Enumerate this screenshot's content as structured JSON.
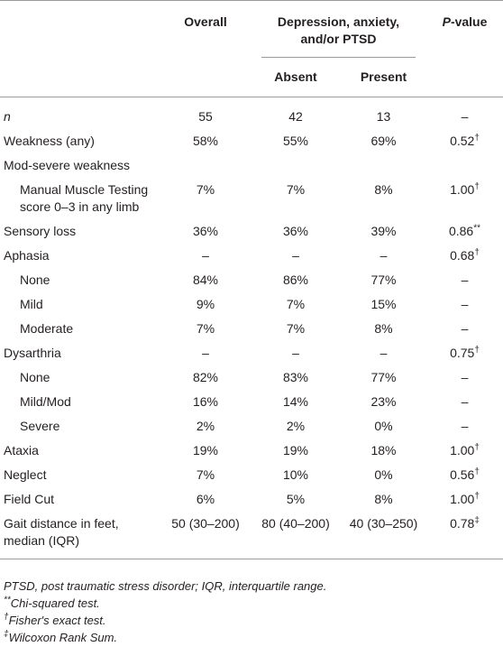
{
  "table": {
    "header": {
      "overall": "Overall",
      "group": "Depression, anxiety, and/or PTSD",
      "absent": "Absent",
      "present": "Present",
      "p_italic": "P",
      "p_rest": "-value"
    },
    "rows": [
      {
        "label": "n",
        "overall": "55",
        "absent": "42",
        "present": "13",
        "p_value": "–"
      },
      {
        "label": "Weakness (any)",
        "overall": "58%",
        "absent": "55%",
        "present": "69%",
        "p_value": "0.52",
        "p_note": "†"
      },
      {
        "label": "Mod-severe weakness",
        "overall": "",
        "absent": "",
        "present": "",
        "p_value": ""
      },
      {
        "label": "Manual Muscle Testing score 0–3 in any limb",
        "overall": "7%",
        "absent": "7%",
        "present": "8%",
        "p_value": "1.00",
        "p_note": "†"
      },
      {
        "label": "Sensory loss",
        "overall": "36%",
        "absent": "36%",
        "present": "39%",
        "p_value": "0.86",
        "p_note": "**"
      },
      {
        "label": "Aphasia",
        "overall": "–",
        "absent": "–",
        "present": "–",
        "p_value": "0.68",
        "p_note": "†"
      },
      {
        "label": "None",
        "overall": "84%",
        "absent": "86%",
        "present": "77%",
        "p_value": "–"
      },
      {
        "label": "Mild",
        "overall": "9%",
        "absent": "7%",
        "present": "15%",
        "p_value": "–"
      },
      {
        "label": "Moderate",
        "overall": "7%",
        "absent": "7%",
        "present": "8%",
        "p_value": "–"
      },
      {
        "label": "Dysarthria",
        "overall": "–",
        "absent": "–",
        "present": "–",
        "p_value": "0.75",
        "p_note": "†"
      },
      {
        "label": "None",
        "overall": "82%",
        "absent": "83%",
        "present": "77%",
        "p_value": "–"
      },
      {
        "label": "Mild/Mod",
        "overall": "16%",
        "absent": "14%",
        "present": "23%",
        "p_value": "–"
      },
      {
        "label": "Severe",
        "overall": "2%",
        "absent": "2%",
        "present": "0%",
        "p_value": "–"
      },
      {
        "label": "Ataxia",
        "overall": "19%",
        "absent": "19%",
        "present": "18%",
        "p_value": "1.00",
        "p_note": "†"
      },
      {
        "label": "Neglect",
        "overall": "7%",
        "absent": "10%",
        "present": "0%",
        "p_value": "0.56",
        "p_note": "†"
      },
      {
        "label": "Field Cut",
        "overall": "6%",
        "absent": "5%",
        "present": "8%",
        "p_value": "1.00",
        "p_note": "†"
      },
      {
        "label": "Gait distance in feet, median (IQR)",
        "overall": "50 (30–200)",
        "absent": "80 (40–200)",
        "present": "40 (30–250)",
        "p_value": "0.78",
        "p_note": "‡"
      }
    ],
    "footnotes": [
      {
        "text": "PTSD, post traumatic stress disorder; IQR, interquartile range."
      },
      {
        "symbol": "**",
        "text": "Chi-squared test."
      },
      {
        "symbol": "†",
        "text": "Fisher's exact test."
      },
      {
        "symbol": "‡",
        "text": "Wilcoxon Rank Sum."
      }
    ]
  }
}
